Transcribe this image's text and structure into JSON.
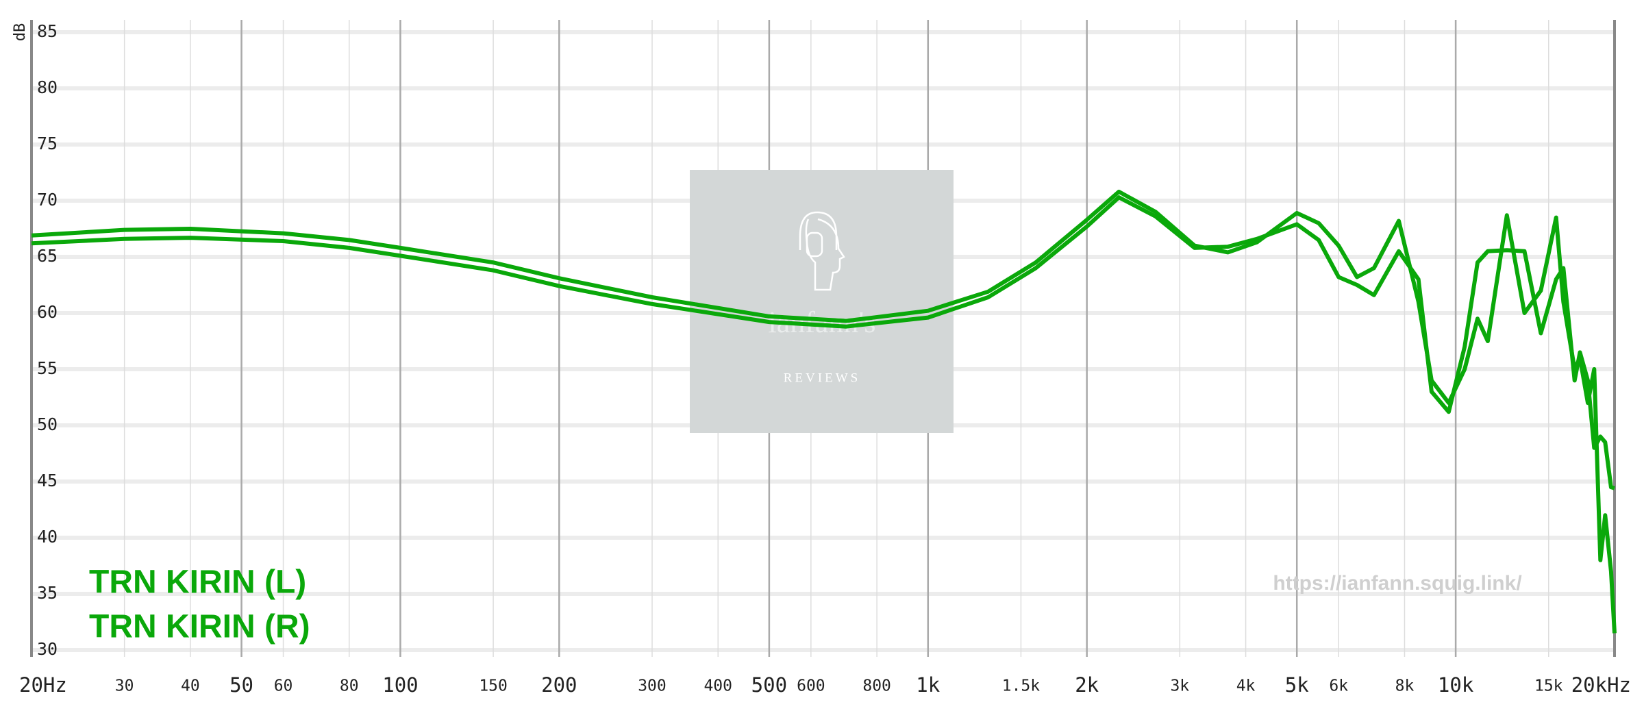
{
  "chart_data": {
    "type": "line",
    "y_label": "dB",
    "x_scale": "log",
    "grid": true,
    "legend_position": "bottom-left",
    "xlim": [
      20,
      20000
    ],
    "ylim": [
      30,
      85
    ],
    "xticks": [
      {
        "value": 20,
        "label": "20Hz"
      },
      30,
      40,
      50,
      60,
      80,
      100,
      150,
      200,
      300,
      400,
      500,
      600,
      800,
      {
        "value": 1000,
        "label": "1k"
      },
      {
        "value": 1500,
        "label": "1.5k"
      },
      {
        "value": 2000,
        "label": "2k"
      },
      {
        "value": 3000,
        "label": "3k"
      },
      {
        "value": 4000,
        "label": "4k"
      },
      {
        "value": 5000,
        "label": "5k"
      },
      {
        "value": 6000,
        "label": "6k"
      },
      {
        "value": 8000,
        "label": "8k"
      },
      {
        "value": 10000,
        "label": "10k"
      },
      {
        "value": 15000,
        "label": "15k"
      },
      {
        "value": 20000,
        "label": "20kHz"
      }
    ],
    "yticks": [
      30,
      35,
      40,
      45,
      50,
      55,
      60,
      65,
      70,
      75,
      80,
      85
    ],
    "x": [
      20,
      30,
      40,
      60,
      80,
      100,
      150,
      200,
      300,
      500,
      700,
      1000,
      1300,
      1600,
      2000,
      2300,
      2700,
      3200,
      3700,
      4200,
      5000,
      5500,
      6000,
      6500,
      7000,
      7800,
      8500,
      9000,
      9700,
      10400,
      11000,
      11500,
      12500,
      13500,
      14500,
      15500,
      16000,
      16800,
      17200,
      17800,
      18300,
      18800,
      19200,
      19700,
      20000
    ],
    "series": [
      {
        "name": "TRN KIRIN (L)",
        "color": "#0aa80a",
        "values": [
          66.9,
          67.4,
          67.5,
          67.1,
          66.5,
          65.8,
          64.5,
          63.1,
          61.4,
          59.7,
          59.3,
          60.2,
          61.9,
          64.5,
          68.3,
          70.8,
          69.0,
          66.0,
          65.4,
          66.3,
          68.9,
          68.0,
          66.0,
          63.2,
          64.0,
          68.2,
          61.0,
          54.0,
          52.0,
          55.0,
          59.5,
          57.5,
          68.7,
          60.0,
          62.0,
          68.5,
          61.0,
          55.0,
          56.0,
          52.0,
          55.0,
          38.0,
          42.0,
          37.0,
          31.5
        ]
      },
      {
        "name": "TRN KIRIN (R)",
        "color": "#0aa80a",
        "values": [
          66.2,
          66.6,
          66.7,
          66.4,
          65.8,
          65.1,
          63.8,
          62.4,
          60.8,
          59.2,
          58.8,
          59.6,
          61.4,
          64.0,
          67.7,
          70.3,
          68.6,
          65.8,
          65.9,
          66.6,
          67.9,
          66.5,
          63.2,
          62.5,
          61.6,
          65.5,
          63.0,
          53.0,
          51.2,
          57.0,
          64.5,
          65.5,
          65.6,
          65.5,
          58.2,
          63.0,
          64.0,
          54.0,
          56.5,
          54.0,
          48.0,
          49.0,
          48.5,
          44.5,
          44.4
        ]
      }
    ]
  },
  "watermark": {
    "brand": "ianfann's",
    "tagline": "REVIEWS",
    "url": "https://ianfann.squig.link/"
  }
}
